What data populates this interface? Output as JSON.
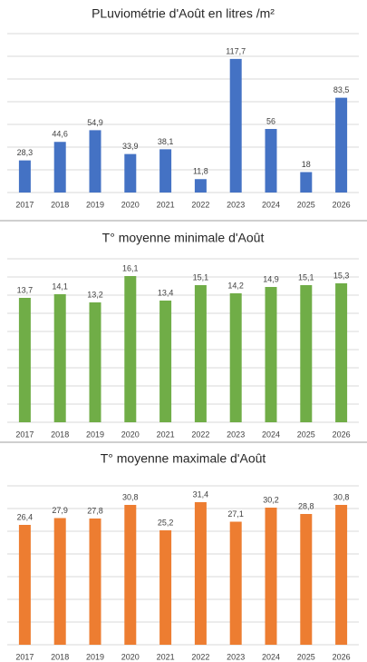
{
  "chart_data": [
    {
      "type": "bar",
      "title": "PLuviométrie d'Août  en litres /m²",
      "color": "#4472c4",
      "categories": [
        "2017",
        "2018",
        "2019",
        "2020",
        "2021",
        "2022",
        "2023",
        "2024",
        "2025",
        "2026"
      ],
      "values": [
        28.3,
        44.6,
        54.9,
        33.9,
        38.1,
        11.8,
        117.7,
        56,
        18,
        83.5
      ],
      "value_labels": [
        "28,3",
        "44,6",
        "54,9",
        "33,9",
        "38,1",
        "11,8",
        "117,7",
        "56",
        "18",
        "83,5"
      ],
      "ylim": [
        0,
        140
      ],
      "yticks": [
        0,
        20,
        40,
        60,
        80,
        100,
        120,
        140
      ],
      "grid": true
    },
    {
      "type": "bar",
      "title": "T° moyenne minimale d'Août",
      "color": "#70ad47",
      "categories": [
        "2017",
        "2018",
        "2019",
        "2020",
        "2021",
        "2022",
        "2023",
        "2024",
        "2025",
        "2026"
      ],
      "values": [
        13.7,
        14.1,
        13.2,
        16.1,
        13.4,
        15.1,
        14.2,
        14.9,
        15.1,
        15.3
      ],
      "value_labels": [
        "13,7",
        "14,1",
        "13,2",
        "16,1",
        "13,4",
        "15,1",
        "14,2",
        "14,9",
        "15,1",
        "15,3"
      ],
      "ylim": [
        0,
        18
      ],
      "yticks": [
        0,
        2,
        4,
        6,
        8,
        10,
        12,
        14,
        16,
        18
      ],
      "grid": true
    },
    {
      "type": "bar",
      "title": "T° moyenne maximale d'Août",
      "color": "#ed7d31",
      "categories": [
        "2017",
        "2018",
        "2019",
        "2020",
        "2021",
        "2022",
        "2023",
        "2024",
        "2025",
        "2026"
      ],
      "values": [
        26.4,
        27.9,
        27.8,
        30.8,
        25.2,
        31.4,
        27.1,
        30.2,
        28.8,
        30.8
      ],
      "value_labels": [
        "26,4",
        "27,9",
        "27,8",
        "30,8",
        "25,2",
        "31,4",
        "27,1",
        "30,2",
        "28,8",
        "30,8"
      ],
      "ylim": [
        0,
        35
      ],
      "yticks": [
        0,
        5,
        10,
        15,
        20,
        25,
        30,
        35
      ],
      "grid": true
    }
  ]
}
